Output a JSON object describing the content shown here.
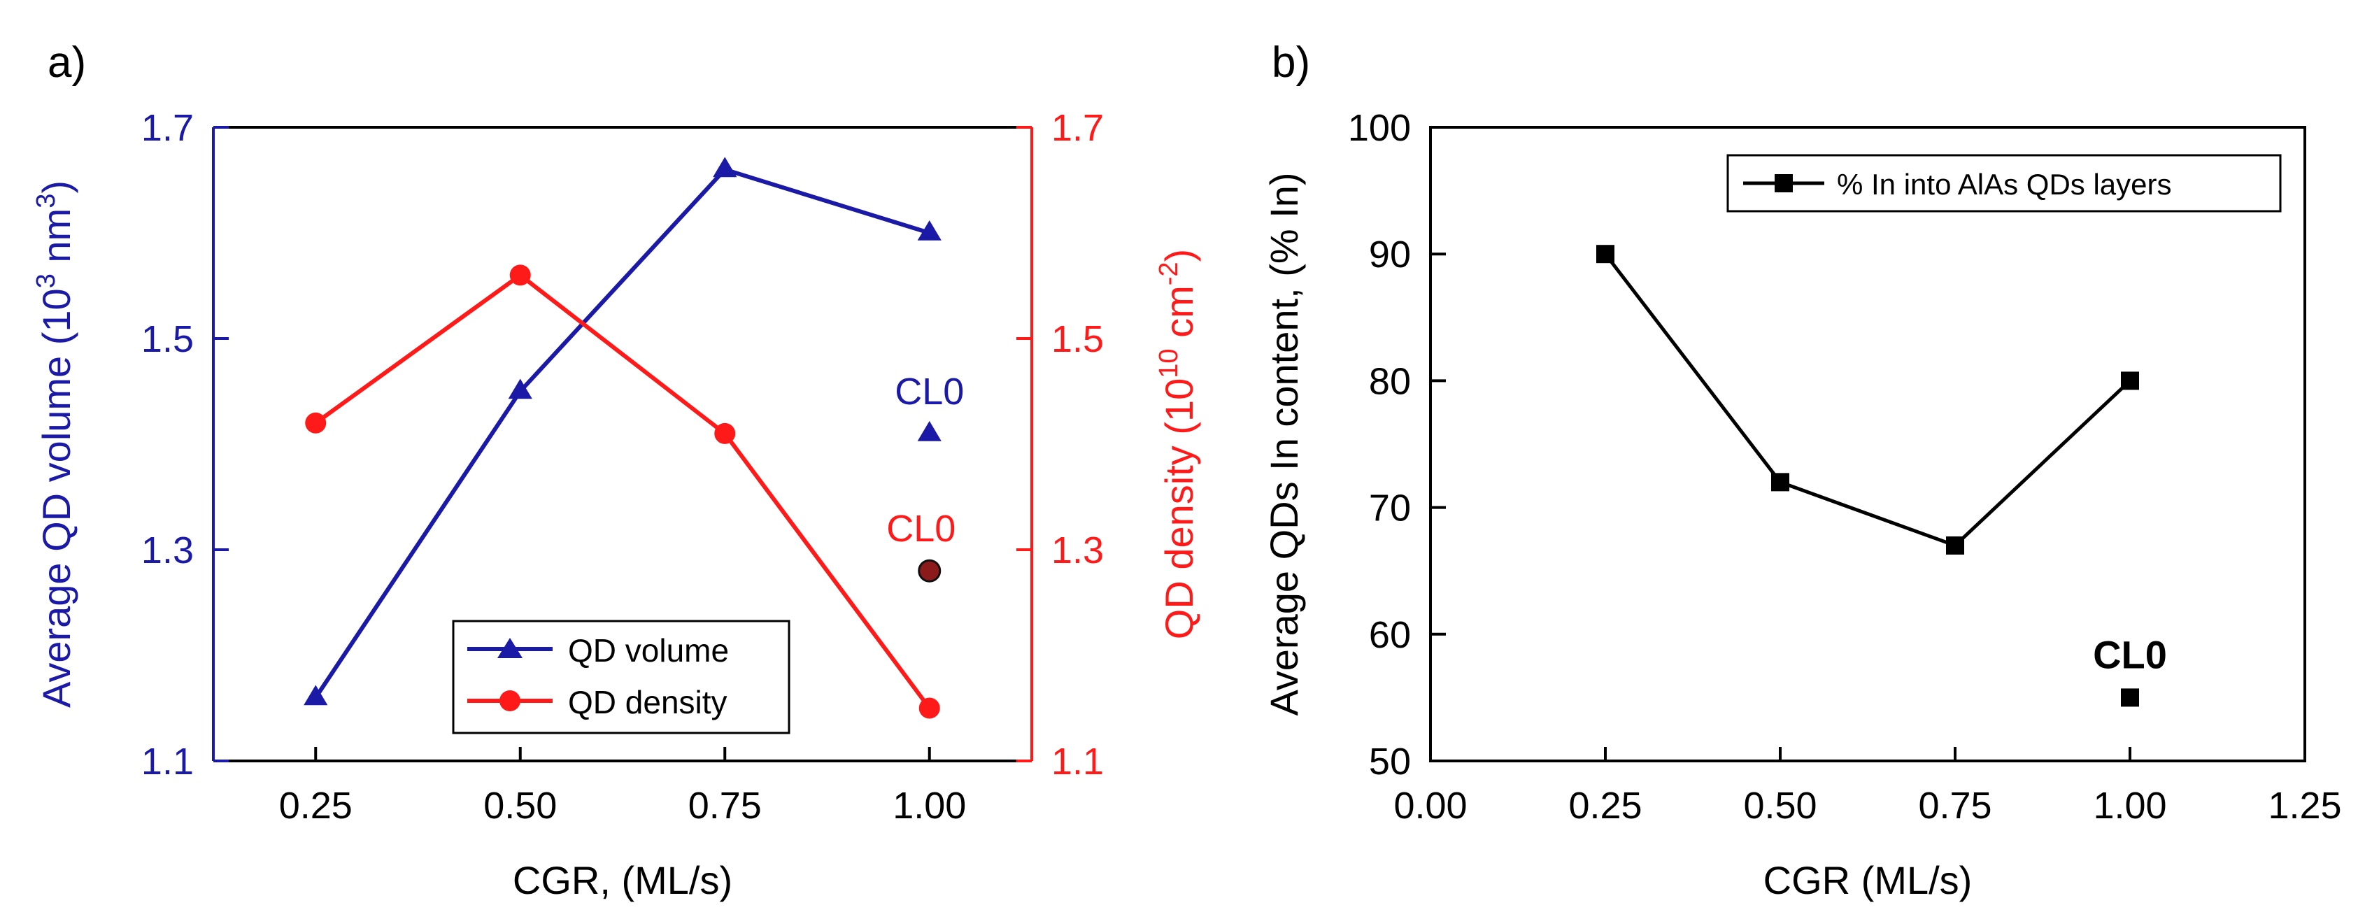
{
  "panels": {
    "a": {
      "label": "a)"
    },
    "b": {
      "label": "b)"
    }
  },
  "chart_data": [
    {
      "id": "a",
      "type": "line",
      "x": [
        0.25,
        0.5,
        0.75,
        1.0
      ],
      "xlabel": "CGR, (ML/s)",
      "xlim": [
        0.125,
        1.125
      ],
      "xticks": [
        0.25,
        0.5,
        0.75,
        1.0
      ],
      "xtick_labels": [
        "0.25",
        "0.50",
        "0.75",
        "1.00"
      ],
      "ylabel_left": {
        "prefix": "Average QD volume (10",
        "sup": "3",
        "mid": " nm",
        "sup2": "3",
        "suffix": ")"
      },
      "ylabel_right": {
        "prefix": "QD density (10",
        "sup": "10",
        "mid": " cm",
        "sup2": "-2",
        "suffix": ")"
      },
      "ylim_left": [
        1.1,
        1.7
      ],
      "ylim_right": [
        1.1,
        1.7
      ],
      "yticks_left": [
        "1.1",
        "1.3",
        "1.5",
        "1.7"
      ],
      "yticks_right": [
        "1.1",
        "1.3",
        "1.5",
        "1.7"
      ],
      "series": [
        {
          "name": "QD volume",
          "axis": "left",
          "color": "#1a1aa6",
          "marker": "triangle",
          "values": [
            1.16,
            1.45,
            1.66,
            1.6
          ]
        },
        {
          "name": "QD density",
          "axis": "right",
          "color": "#ff1a1a",
          "marker": "circle",
          "values": [
            1.42,
            1.56,
            1.41,
            1.15
          ]
        }
      ],
      "extra_points": [
        {
          "label": "CL0",
          "x": 1.0,
          "y": 1.41,
          "axis": "left",
          "color": "#1a1aa6",
          "marker": "triangle"
        },
        {
          "label": "CL0",
          "x": 1.0,
          "y": 1.28,
          "axis": "right",
          "color": "#ff1a1a",
          "marker": "circle-dark"
        }
      ],
      "legend_position": "bottom-center"
    },
    {
      "id": "b",
      "type": "line",
      "x": [
        0.25,
        0.5,
        0.75,
        1.0
      ],
      "xlabel": "CGR (ML/s)",
      "ylabel": "Average QDs In content, (% In)",
      "xlim": [
        0,
        1.25
      ],
      "ylim": [
        50,
        100
      ],
      "xticks": [
        0,
        0.25,
        0.5,
        0.75,
        1.0,
        1.25
      ],
      "xtick_labels": [
        "0.00",
        "0.25",
        "0.50",
        "0.75",
        "1.00",
        "1.25"
      ],
      "yticks": [
        50,
        60,
        70,
        80,
        90,
        100
      ],
      "ytick_labels": [
        "50",
        "60",
        "70",
        "80",
        "90",
        "100"
      ],
      "series": [
        {
          "name": "% In into AlAs QDs layers",
          "color": "#000000",
          "marker": "square",
          "values": [
            90,
            72,
            67,
            80
          ]
        }
      ],
      "extra_points": [
        {
          "label": "CL0",
          "x": 1.0,
          "y": 55,
          "color": "#000000",
          "marker": "square"
        }
      ],
      "legend_position": "top-right"
    }
  ]
}
